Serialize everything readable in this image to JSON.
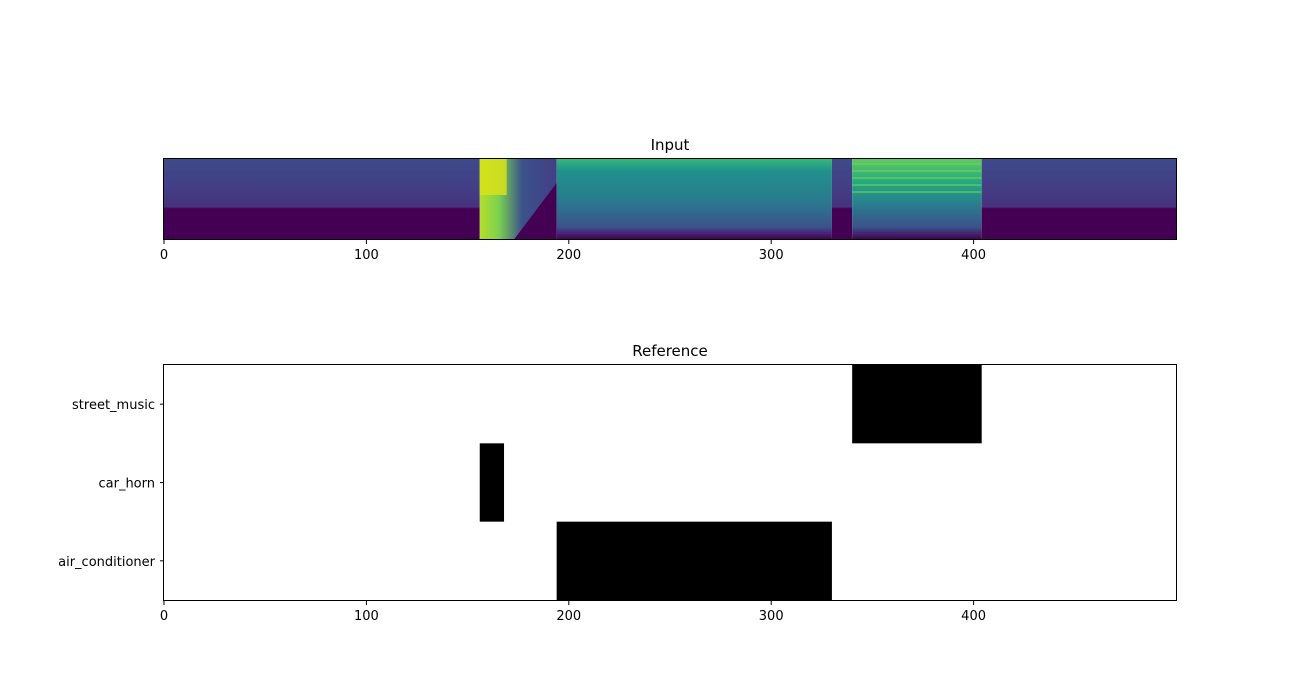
{
  "chart_data": [
    {
      "type": "heatmap",
      "title": "Input",
      "xlim": [
        0,
        500
      ],
      "xticks": [
        0,
        100,
        200,
        300,
        400
      ],
      "yticks": [],
      "colormap": "viridis",
      "segments": [
        {
          "x0": 0,
          "x1": 156,
          "level": "low"
        },
        {
          "x0": 156,
          "x1": 194,
          "level": "bright-fading"
        },
        {
          "x0": 194,
          "x1": 330,
          "level": "mid"
        },
        {
          "x0": 330,
          "x1": 340,
          "level": "low"
        },
        {
          "x0": 340,
          "x1": 404,
          "level": "mid-high"
        },
        {
          "x0": 404,
          "x1": 500,
          "level": "low"
        }
      ],
      "colors": {
        "dark": "#440154",
        "blue": "#3b528b",
        "teal": "#21918c",
        "green": "#5ec962",
        "yellow": "#fde725"
      }
    },
    {
      "type": "heatmap",
      "title": "Reference",
      "xlim": [
        0,
        500
      ],
      "xticks": [
        0,
        100,
        200,
        300,
        400
      ],
      "categories": [
        "street_music",
        "car_horn",
        "air_conditioner"
      ],
      "events": [
        {
          "category": "street_music",
          "x0": 340,
          "x1": 404
        },
        {
          "category": "car_horn",
          "x0": 156,
          "x1": 168
        },
        {
          "category": "air_conditioner",
          "x0": 194,
          "x1": 330
        }
      ],
      "colors": {
        "active": "#000000",
        "inactive": "#ffffff"
      }
    }
  ]
}
